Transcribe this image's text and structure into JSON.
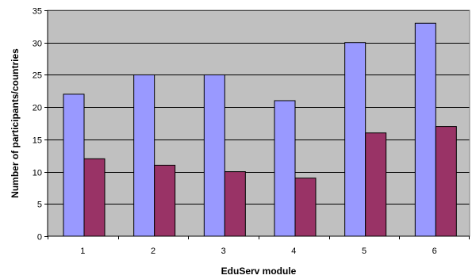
{
  "chart_data": {
    "type": "bar",
    "title": "",
    "xlabel": "EduServ module",
    "ylabel": "Number of participants/countries",
    "categories": [
      "1",
      "2",
      "3",
      "4",
      "5",
      "6"
    ],
    "series": [
      {
        "values": [
          22,
          25,
          25,
          21,
          30,
          33
        ],
        "color": "#9999ff"
      },
      {
        "values": [
          12,
          11,
          10,
          9,
          16,
          17
        ],
        "color": "#993366"
      }
    ],
    "ylim": [
      0,
      35
    ],
    "yticks": [
      0,
      5,
      10,
      15,
      20,
      25,
      30,
      35
    ],
    "grid": true,
    "legend": "none",
    "plot_background": "#c0c0c0"
  }
}
